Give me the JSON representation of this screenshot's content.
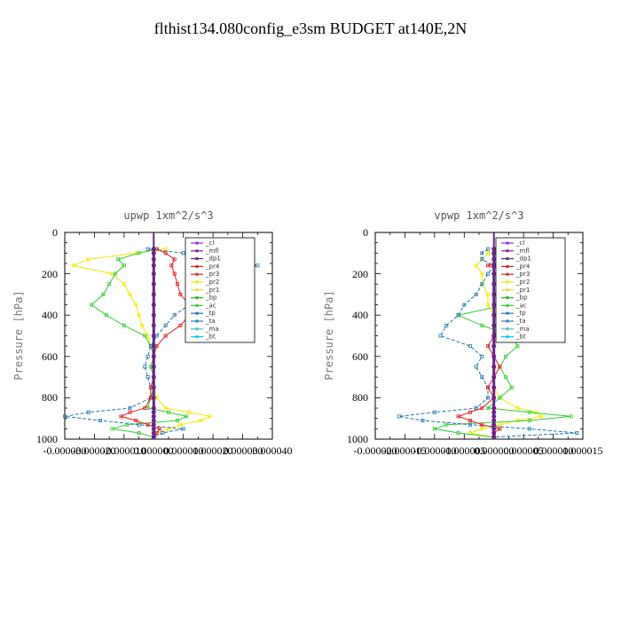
{
  "figure_title": "flthist134.080config_e3sm  BUDGET at140E,2N",
  "colors": {
    "cl": "#8a2be2",
    "mfl": "#7a1f8c",
    "dp1": "#5b2a86",
    "pr4": "#e41a1c",
    "pr3": "#d62828",
    "pr2": "#f2e600",
    "pr1": "#f4d03f",
    "bp": "#22b522",
    "ac": "#33cc33",
    "tp": "#1f77b4",
    "ta": "#2c7fb8",
    "ma": "#5bb5c9",
    "bt": "#00c8ff"
  },
  "chart_data": [
    {
      "type": "line",
      "title": "upwp   1xm^2/s^3",
      "ylabel": "Pressure [hPa]",
      "ylim": [
        1000,
        0
      ],
      "y_ticks": [
        "0",
        "200",
        "400",
        "600",
        "800",
        "1000"
      ],
      "x_ticks": [
        "-0.000030",
        "-0.000020",
        "-0.000010",
        "0.000000",
        "0.000010",
        "0.000020",
        "0.000030",
        "0.000040"
      ],
      "xlim": [
        -3e-05,
        4e-05
      ],
      "legend": [
        "_cl",
        "_mfl",
        "_dp1",
        "_pr4",
        "_pr3",
        "_pr2",
        "_pr1",
        "_bp",
        "_ac",
        "_tp",
        "_ta",
        "_ma",
        "_bt"
      ],
      "y": [
        80,
        100,
        130,
        160,
        200,
        250,
        300,
        350,
        400,
        450,
        500,
        550,
        600,
        650,
        700,
        750,
        800,
        850,
        870,
        890,
        910,
        930,
        950,
        970,
        990
      ],
      "series": [
        {
          "name": "_pr2",
          "key": "pr2",
          "values": [
            4e-06,
            -6e-06,
            -2.2e-05,
            -2.7e-05,
            -1.4e-05,
            -1e-05,
            -8e-06,
            -6e-06,
            -5e-06,
            -4e-06,
            -2e-06,
            -1e-06,
            0,
            0,
            0,
            0,
            1e-06,
            4e-06,
            1.2e-05,
            1.9e-05,
            1.6e-05,
            9e-06,
            5e-06,
            1e-06,
            0
          ]
        },
        {
          "name": "_ac",
          "key": "ac",
          "values": [
            1e-06,
            -5e-06,
            -1.2e-05,
            -1e-05,
            -1.3e-05,
            -1.5e-05,
            -1.7e-05,
            -2.1e-05,
            -1.6e-05,
            -1e-05,
            -3e-06,
            -1e-06,
            0,
            -1e-06,
            0,
            0,
            -1e-06,
            -2e-06,
            5e-06,
            1.1e-05,
            8e-06,
            -9e-06,
            -1.4e-05,
            -5e-06,
            0
          ]
        },
        {
          "name": "_tp",
          "key": "tp",
          "values": [
            -2e-06,
            1e-05,
            2.8e-05,
            3.5e-05,
            2.4e-05,
            1.9e-05,
            1.6e-05,
            1.2e-05,
            7e-06,
            4e-06,
            1e-06,
            -1e-06,
            -2e-06,
            -3e-06,
            -2e-06,
            -1e-06,
            -1e-06,
            -8e-06,
            -2.2e-05,
            -3e-05,
            -1.8e-05,
            -5e-06,
            1e-05,
            3e-06,
            0
          ]
        },
        {
          "name": "_pr4",
          "key": "pr4",
          "values": [
            1e-06,
            4e-06,
            7e-06,
            6e-06,
            7e-06,
            8e-06,
            9e-06,
            1.2e-05,
            1.2e-05,
            9e-06,
            4e-06,
            1e-06,
            0,
            0,
            0,
            -1e-06,
            -1e-06,
            -3e-06,
            -8e-06,
            -1.1e-05,
            -6e-06,
            -2e-06,
            2e-06,
            1e-06,
            0
          ]
        },
        {
          "name": "_mfl",
          "key": "mfl",
          "values": [
            0,
            0,
            0,
            0,
            0,
            0,
            0,
            0,
            0,
            0,
            0,
            0,
            0,
            0,
            0,
            0,
            0,
            0,
            0,
            0,
            0,
            0,
            0,
            0,
            0
          ]
        }
      ]
    },
    {
      "type": "line",
      "title": "vpwp   1xm^2/s^3",
      "ylabel": "Pressure [hPa]",
      "ylim": [
        1000,
        0
      ],
      "y_ticks": [
        "0",
        "200",
        "400",
        "600",
        "800",
        "1000"
      ],
      "x_ticks": [
        "-0.000020",
        "-0.000015",
        "-0.000010",
        "-0.000005",
        "0.000000",
        "0.000005",
        "0.000010",
        "0.000015"
      ],
      "xlim": [
        -2e-05,
        1.5e-05
      ],
      "legend": [
        "_cl",
        "_mfl",
        "_dp1",
        "_pr4",
        "_pr3",
        "_pr2",
        "_pr1",
        "_bp",
        "_ac",
        "_tp",
        "_ta",
        "_ma",
        "_bt"
      ],
      "y": [
        80,
        100,
        130,
        160,
        200,
        250,
        300,
        350,
        400,
        450,
        500,
        550,
        600,
        650,
        700,
        750,
        800,
        850,
        870,
        890,
        910,
        930,
        950,
        970,
        990
      ],
      "series": [
        {
          "name": "_pr2",
          "key": "pr2",
          "values": [
            1e-06,
            -1e-06,
            -2e-06,
            -3e-06,
            -2e-06,
            -2e-06,
            -1e-06,
            -1e-06,
            0,
            1e-06,
            1e-06,
            0,
            0,
            0,
            0,
            0,
            1e-06,
            4e-06,
            7e-06,
            8e-06,
            4e-06,
            1e-06,
            -2e-06,
            -4e-06,
            0
          ]
        },
        {
          "name": "_ac",
          "key": "ac",
          "values": [
            1e-06,
            2e-06,
            1e-06,
            3e-06,
            2e-06,
            3e-06,
            4e-06,
            2e-06,
            -6e-06,
            -2e-06,
            3e-06,
            4e-06,
            2e-06,
            1e-06,
            2e-06,
            3e-06,
            1e-06,
            -1e-06,
            6e-06,
            1.3e-05,
            6e-06,
            -8e-06,
            -1e-05,
            -6e-06,
            0
          ]
        },
        {
          "name": "_tp",
          "key": "tp",
          "values": [
            -1e-06,
            -2e-06,
            -2e-06,
            0,
            -1e-06,
            -2e-06,
            -3e-06,
            -5e-06,
            -6e-06,
            -8e-06,
            -9e-06,
            -4e-06,
            -2e-06,
            -3e-06,
            -2e-06,
            -1e-06,
            -1e-06,
            -3e-06,
            -1e-05,
            -1.6e-05,
            -1.2e-05,
            -4e-06,
            6e-06,
            1.4e-05,
            0
          ]
        },
        {
          "name": "_pr4",
          "key": "pr4",
          "values": [
            0,
            1e-06,
            2e-06,
            -1e-06,
            3e-06,
            2e-06,
            1e-06,
            1e-06,
            2e-06,
            1e-06,
            0,
            -1e-06,
            0,
            1e-06,
            0,
            -1e-06,
            0,
            -2e-06,
            -4e-06,
            -6e-06,
            -4e-06,
            -2e-06,
            1e-06,
            0,
            0
          ]
        },
        {
          "name": "_mfl",
          "key": "mfl",
          "values": [
            0,
            0,
            0,
            0,
            0,
            0,
            0,
            0,
            0,
            0,
            0,
            0,
            0,
            0,
            0,
            0,
            0,
            0,
            0,
            0,
            0,
            0,
            0,
            0,
            0
          ]
        }
      ]
    }
  ]
}
